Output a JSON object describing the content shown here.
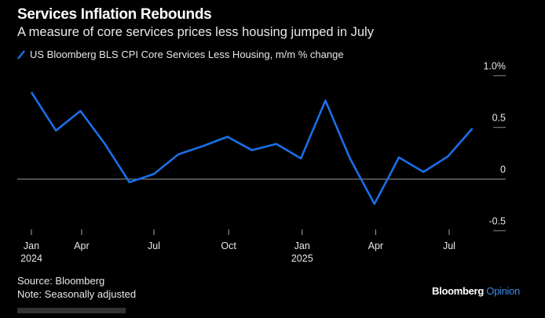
{
  "title": "Services Inflation Rebounds",
  "subtitle": "A measure of core services prices less housing jumped in July",
  "source": "Source: Bloomberg",
  "note": "Note: Seasonally adjusted",
  "logo": {
    "brand": "Bloomberg",
    "product": "Opinion"
  },
  "colors": {
    "series": "#1a6fe8",
    "background": "#000000",
    "zero_line": "#9a9a9a"
  },
  "chart_data": {
    "type": "line",
    "x": [
      "2024-01",
      "2024-02",
      "2024-03",
      "2024-04",
      "2024-05",
      "2024-06",
      "2024-07",
      "2024-08",
      "2024-09",
      "2024-10",
      "2024-11",
      "2024-12",
      "2025-01",
      "2025-02",
      "2025-03",
      "2025-04",
      "2025-05",
      "2025-06",
      "2025-07"
    ],
    "series": [
      {
        "name": "US Bloomberg BLS CPI Core Services Less Housing, m/m % change",
        "values": [
          0.84,
          0.47,
          0.66,
          0.34,
          -0.03,
          0.05,
          0.24,
          0.32,
          0.41,
          0.28,
          0.34,
          0.2,
          0.76,
          0.2,
          -0.24,
          0.21,
          0.07,
          0.22,
          0.49
        ]
      }
    ],
    "ylim": [
      -0.6,
      1.0
    ],
    "yticks": [
      {
        "value": 1.0,
        "label": "1.0%"
      },
      {
        "value": 0.5,
        "label": "0.5"
      },
      {
        "value": 0,
        "label": "0"
      },
      {
        "value": -0.5,
        "label": "-0.5"
      }
    ],
    "xticks": [
      {
        "label": "Jan",
        "sublabel": "2024"
      },
      {
        "label": "Apr",
        "sublabel": ""
      },
      {
        "label": "Jul",
        "sublabel": ""
      },
      {
        "label": "Oct",
        "sublabel": ""
      },
      {
        "label": "Jan",
        "sublabel": "2025"
      },
      {
        "label": "Apr",
        "sublabel": ""
      },
      {
        "label": "Jul",
        "sublabel": ""
      }
    ],
    "legend": "top-left",
    "grid": false
  }
}
